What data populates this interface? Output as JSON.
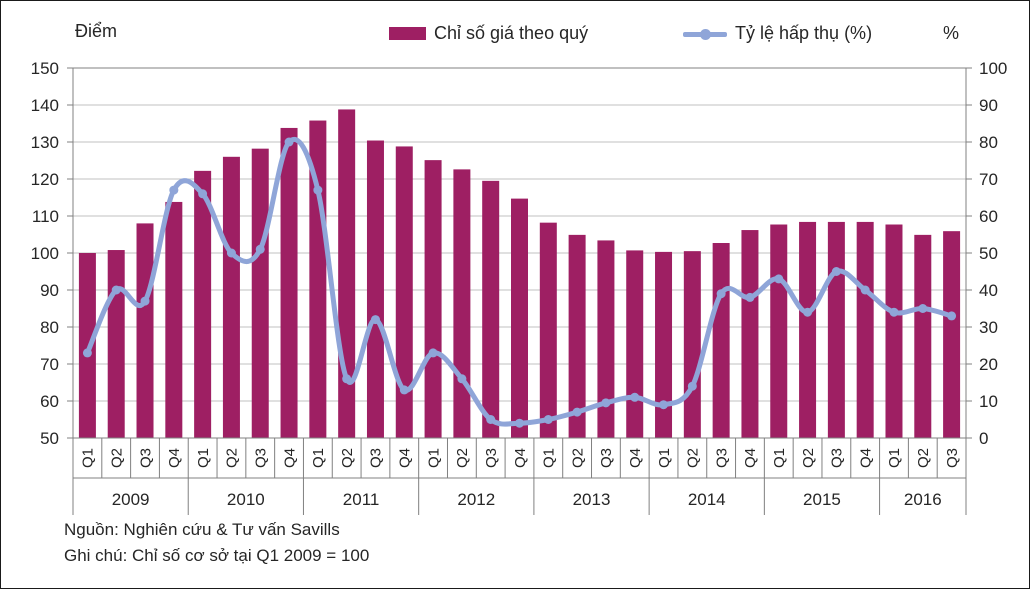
{
  "header": {
    "left_axis_title": "Điểm",
    "right_axis_title": "%"
  },
  "legend": {
    "bar": {
      "label": "Chỉ số giá theo quý",
      "color": "#9E1F63"
    },
    "line": {
      "label": "Tỷ lệ hấp thụ (%)",
      "color": "#8FA5D8"
    }
  },
  "footer": {
    "source": "Nguồn: Nghiên cứu & Tư vấn Savills",
    "note": "Ghi chú: Chỉ số cơ sở tại Q1 2009 = 100"
  },
  "chart_data": {
    "type": "bar+line",
    "grid": true,
    "legend_position": "top-center",
    "colors": {
      "grid": "#C0C0C0",
      "axis": "#808080",
      "text": "#262626"
    },
    "axes": {
      "left": {
        "title": "Điểm",
        "min": 50,
        "max": 150,
        "step": 10,
        "ticks": [
          150,
          140,
          130,
          120,
          110,
          100,
          90,
          80,
          70,
          60,
          50
        ]
      },
      "right": {
        "title": "%",
        "min": 0,
        "max": 100,
        "step": 10,
        "ticks": [
          100,
          90,
          80,
          70,
          60,
          50,
          40,
          30,
          20,
          10,
          0
        ]
      }
    },
    "years": [
      {
        "label": "2009",
        "quarters": [
          "Q1",
          "Q2",
          "Q3",
          "Q4"
        ]
      },
      {
        "label": "2010",
        "quarters": [
          "Q1",
          "Q2",
          "Q3",
          "Q4"
        ]
      },
      {
        "label": "2011",
        "quarters": [
          "Q1",
          "Q2",
          "Q3",
          "Q4"
        ]
      },
      {
        "label": "2012",
        "quarters": [
          "Q1",
          "Q2",
          "Q3",
          "Q4"
        ]
      },
      {
        "label": "2013",
        "quarters": [
          "Q1",
          "Q2",
          "Q3",
          "Q4"
        ]
      },
      {
        "label": "2014",
        "quarters": [
          "Q1",
          "Q2",
          "Q3",
          "Q4"
        ]
      },
      {
        "label": "2015",
        "quarters": [
          "Q1",
          "Q2",
          "Q3",
          "Q4"
        ]
      },
      {
        "label": "2016",
        "quarters": [
          "Q1",
          "Q2",
          "Q3"
        ]
      }
    ],
    "series": [
      {
        "name": "Chỉ số giá theo quý",
        "type": "bar",
        "axis": "left",
        "color": "#9E1F63",
        "values": [
          100,
          100.8,
          108,
          113.8,
          122.2,
          126,
          128.2,
          133.8,
          135.8,
          138.8,
          130.4,
          128.8,
          125.1,
          122.6,
          119.5,
          114.7,
          108.2,
          104.9,
          103.4,
          100.7,
          100.3,
          100.5,
          102.7,
          106.2,
          107.7,
          108.4,
          108.4,
          108.4,
          107.7,
          104.9,
          105.9
        ]
      },
      {
        "name": "Tỷ lệ hấp thụ (%)",
        "type": "line",
        "axis": "right",
        "color": "#8FA5D8",
        "values": [
          23,
          40,
          37,
          67,
          66,
          50,
          51,
          80,
          67,
          16,
          32,
          13,
          23,
          16,
          5,
          4,
          5,
          7,
          9.5,
          11,
          9,
          14,
          39,
          38,
          43,
          34,
          45,
          40,
          34,
          35,
          33
        ]
      }
    ]
  }
}
